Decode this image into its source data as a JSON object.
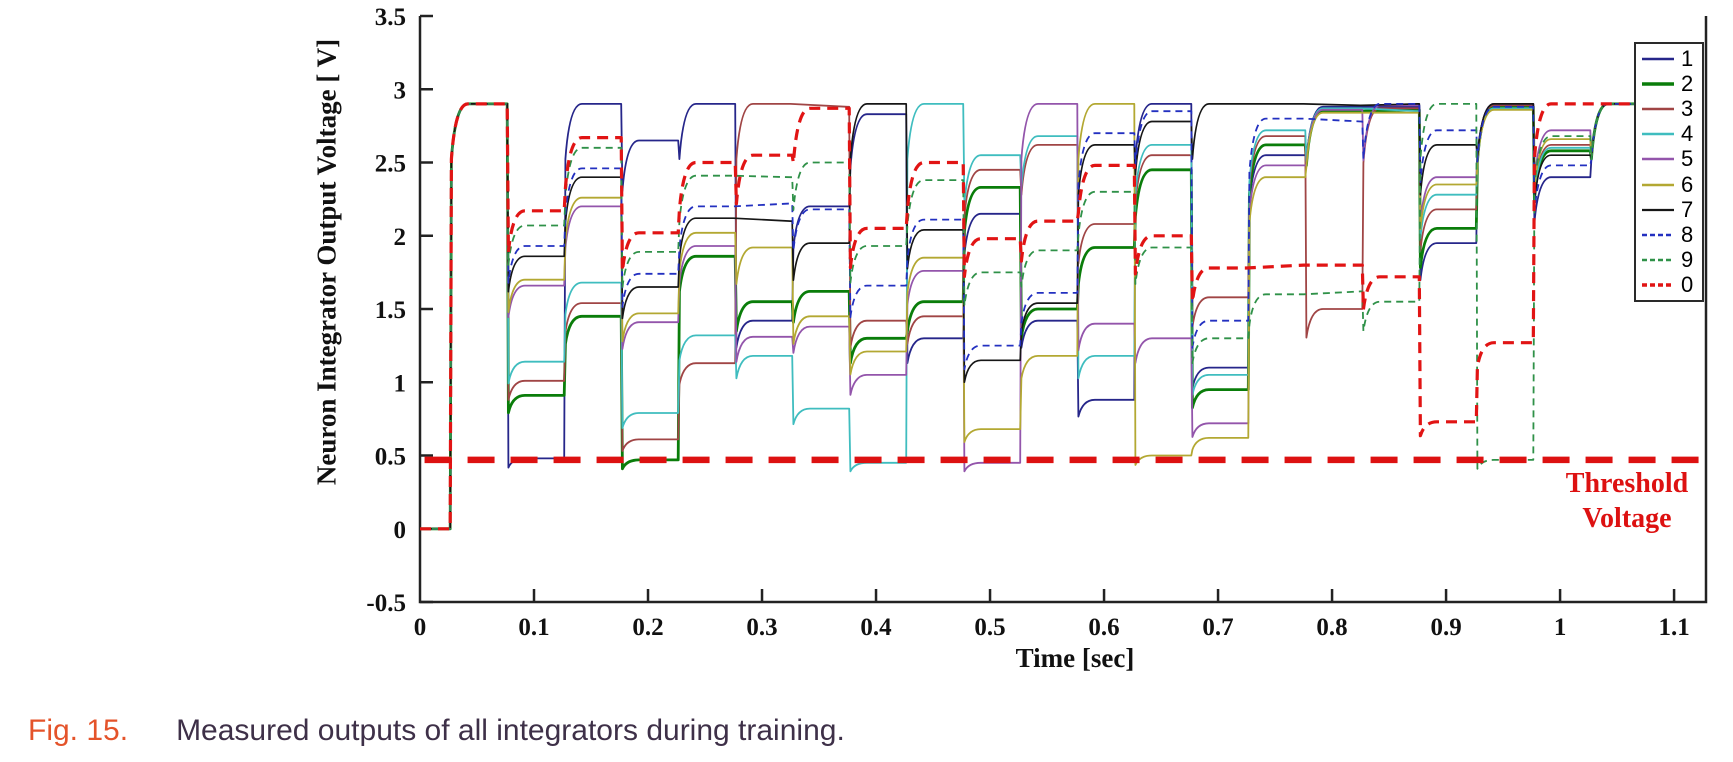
{
  "figure": {
    "caption_label": "Fig. 15.",
    "caption_text": "Measured outputs of all integrators during training.",
    "caption_label_color": "#e4532a",
    "caption_text_color": "#3e3048",
    "background_color": "#ffffff"
  },
  "chart_data": {
    "type": "line",
    "title": "",
    "xlabel": "Time [sec]",
    "ylabel": "Neuron Integrator Output Voltage [ V]",
    "xlim": [
      0,
      1.128
    ],
    "ylim": [
      -0.5,
      3.5
    ],
    "xticks": [
      0,
      0.1,
      0.2,
      0.3,
      0.4,
      0.5,
      0.6,
      0.7,
      0.8,
      0.9,
      1.0,
      1.1
    ],
    "xtick_labels": [
      "0",
      "0.1",
      "0.2",
      "0.3",
      "0.4",
      "0.5",
      "0.6",
      "0.7",
      "0.8",
      "0.9",
      "1",
      "1.1"
    ],
    "yticks": [
      3.5,
      3,
      2.5,
      2,
      1.5,
      1,
      0.5,
      0,
      -0.5
    ],
    "ytick_labels": [
      "3.5",
      "3",
      "2.5",
      "2",
      "1.5",
      "1",
      "0.5",
      "0",
      "-0.5"
    ],
    "grid": false,
    "axis_color": "#222222",
    "legend_position": "upper right",
    "saturation_voltage": 2.9,
    "start_time": 0.018,
    "window_duration_sec": 0.05,
    "window_starts": [
      0.025,
      0.075,
      0.125,
      0.175,
      0.225,
      0.275,
      0.325,
      0.375,
      0.425,
      0.475,
      0.525,
      0.575,
      0.625,
      0.675,
      0.725,
      0.775,
      0.825,
      0.875,
      0.925,
      0.975,
      1.025
    ],
    "series": [
      {
        "name": "1",
        "color": "#26268a",
        "style": "solid",
        "width": 1.8,
        "levels": [
          2.9,
          0.48,
          2.9,
          2.65,
          2.9,
          1.42,
          2.2,
          2.83,
          1.3,
          2.15,
          1.42,
          0.88,
          2.9,
          1.1,
          2.55,
          2.88,
          2.88,
          1.95,
          2.9,
          2.4,
          2.9
        ]
      },
      {
        "name": "2",
        "color": "#0a7d0a",
        "style": "solid",
        "width": 2.8,
        "levels": [
          2.9,
          0.91,
          1.45,
          0.47,
          1.86,
          1.55,
          1.62,
          1.3,
          1.55,
          2.33,
          1.5,
          1.92,
          2.45,
          0.95,
          2.62,
          2.85,
          2.86,
          2.05,
          2.88,
          2.58,
          2.9
        ]
      },
      {
        "name": "3",
        "color": "#a04545",
        "style": "solid",
        "width": 1.8,
        "levels": [
          2.9,
          1.01,
          1.54,
          0.61,
          1.13,
          2.9,
          2.88,
          1.42,
          1.45,
          2.45,
          2.62,
          2.08,
          2.55,
          1.58,
          2.68,
          1.5,
          2.87,
          2.18,
          2.89,
          2.62,
          2.9
        ]
      },
      {
        "name": "4",
        "color": "#3fbdbf",
        "style": "solid",
        "width": 1.8,
        "levels": [
          2.9,
          1.14,
          1.68,
          0.79,
          1.32,
          1.18,
          0.82,
          0.45,
          2.9,
          2.55,
          2.68,
          1.18,
          2.62,
          1.05,
          2.72,
          2.87,
          2.85,
          2.28,
          2.87,
          2.6,
          2.9
        ]
      },
      {
        "name": "5",
        "color": "#9355ab",
        "style": "solid",
        "width": 1.8,
        "levels": [
          2.9,
          1.66,
          2.2,
          1.41,
          1.93,
          1.31,
          1.38,
          1.05,
          1.76,
          0.45,
          2.9,
          1.4,
          1.3,
          0.72,
          2.48,
          2.86,
          2.89,
          2.4,
          2.9,
          2.72,
          2.9
        ]
      },
      {
        "name": "6",
        "color": "#b3a832",
        "style": "solid",
        "width": 1.8,
        "levels": [
          2.9,
          1.7,
          2.26,
          1.47,
          2.02,
          1.92,
          1.45,
          1.21,
          1.85,
          0.68,
          1.18,
          2.9,
          0.5,
          0.62,
          2.4,
          2.84,
          2.84,
          2.35,
          2.86,
          2.66,
          2.9
        ]
      },
      {
        "name": "7",
        "color": "#161616",
        "style": "solid",
        "width": 1.7,
        "levels": [
          2.9,
          1.86,
          2.4,
          1.65,
          2.12,
          2.1,
          1.95,
          2.9,
          2.04,
          1.15,
          1.54,
          2.62,
          2.78,
          2.9,
          2.9,
          2.89,
          2.9,
          2.62,
          2.9,
          2.55,
          2.9
        ]
      },
      {
        "name": "8",
        "color": "#2330c0",
        "style": "dashed",
        "width": 1.8,
        "levels": [
          2.9,
          1.93,
          2.46,
          1.74,
          2.2,
          2.22,
          2.18,
          1.66,
          2.11,
          1.25,
          1.61,
          2.7,
          2.85,
          1.42,
          2.8,
          2.78,
          2.9,
          2.72,
          2.88,
          2.48,
          2.9
        ]
      },
      {
        "name": "9",
        "color": "#2f9148",
        "style": "dashed",
        "width": 1.8,
        "levels": [
          2.9,
          2.07,
          2.6,
          1.89,
          2.41,
          2.4,
          2.5,
          1.93,
          2.38,
          1.75,
          1.9,
          2.3,
          1.92,
          1.3,
          1.6,
          1.62,
          1.55,
          2.9,
          0.47,
          2.68,
          2.9
        ]
      },
      {
        "name": "0",
        "color": "#e11414",
        "style": "dashed",
        "width": 3.2,
        "levels": [
          2.9,
          2.17,
          2.67,
          2.02,
          2.5,
          2.55,
          2.87,
          2.05,
          2.5,
          1.98,
          2.1,
          2.48,
          2.0,
          1.78,
          1.8,
          1.8,
          1.72,
          0.73,
          1.27,
          2.9,
          2.9
        ]
      }
    ],
    "threshold": {
      "value": 0.47,
      "color": "#dd1111",
      "label_line1": "Threshold",
      "label_line2": "Voltage"
    }
  }
}
